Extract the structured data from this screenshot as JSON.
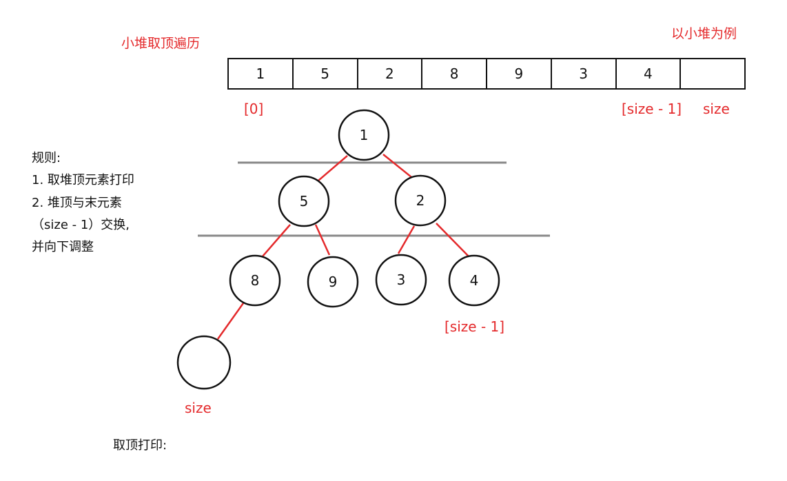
{
  "header": {
    "title": "小堆取顶遍历",
    "example": "以小堆为例"
  },
  "array": {
    "cells": [
      "1",
      "5",
      "2",
      "8",
      "9",
      "3",
      "4",
      ""
    ],
    "label_first": "[0]",
    "label_last": "[size - 1]",
    "label_size": "size"
  },
  "rules": {
    "heading": "规则:",
    "step1": "1. 取堆顶元素打印",
    "step2a": "2. 堆顶与末元素",
    "step2b": "（size - 1）交换,",
    "step2c": "并向下调整"
  },
  "tree": {
    "nodes": [
      "1",
      "5",
      "2",
      "8",
      "9",
      "3",
      "4",
      ""
    ],
    "label_last": "[size - 1]",
    "label_size": "size"
  },
  "footer": {
    "print_label": "取顶打印:"
  },
  "colors": {
    "edge": "#e4292b",
    "level_line": "#888888",
    "label": "#e4292b"
  }
}
